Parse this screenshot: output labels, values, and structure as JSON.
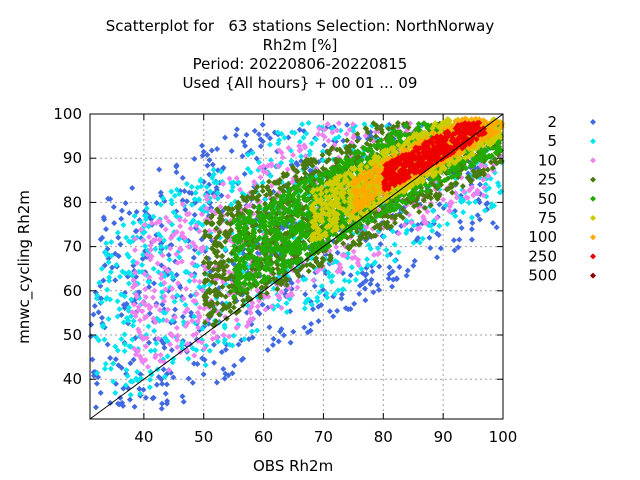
{
  "title_lines": [
    "Scatterplot for   63 stations Selection: NorthNorway",
    "Rh2m [%]",
    "Period: 20220806-20220815",
    "Used {All hours} + 00 01 ... 09"
  ],
  "chart_data": {
    "type": "scatter",
    "xlabel": "OBS Rh2m",
    "ylabel": "mnwc_cycling Rh2m",
    "xlim": [
      31,
      100
    ],
    "ylim": [
      31,
      100
    ],
    "x_ticks": [
      "40",
      "50",
      "60",
      "70",
      "80",
      "90",
      "100"
    ],
    "y_ticks": [
      "40",
      "50",
      "60",
      "70",
      "80",
      "90",
      "100"
    ],
    "x_tick_values": [
      40,
      50,
      60,
      70,
      80,
      90,
      100
    ],
    "y_tick_values": [
      40,
      50,
      60,
      70,
      80,
      90,
      100
    ],
    "grid": true,
    "diagonal_reference_line": true,
    "legend_placement": "right",
    "legend": [
      {
        "label": "2",
        "color": "#4169e1"
      },
      {
        "label": "5",
        "color": "#00e5ee"
      },
      {
        "label": "10",
        "color": "#ee82ee"
      },
      {
        "label": "25",
        "color": "#4a7a0c"
      },
      {
        "label": "50",
        "color": "#22aa00"
      },
      {
        "label": "75",
        "color": "#cccc00"
      },
      {
        "label": "100",
        "color": "#ffaa00"
      },
      {
        "label": "250",
        "color": "#ee0000"
      },
      {
        "label": "500",
        "color": "#8b0000"
      }
    ],
    "density_bands_description": "point colour encodes count per bin; counts rise toward the diagonal, highest (250) near OBS 80-95 / model 80-95",
    "density_regions": [
      {
        "level": "2",
        "color": "#4169e1",
        "x_range": [
          31,
          100
        ],
        "y_range": [
          33,
          98
        ],
        "offset_spread": 28
      },
      {
        "level": "5",
        "color": "#00e5ee",
        "x_range": [
          32,
          100
        ],
        "y_range": [
          36,
          98
        ],
        "offset_spread": 22
      },
      {
        "level": "10",
        "color": "#ee82ee",
        "x_range": [
          38,
          100
        ],
        "y_range": [
          42,
          98
        ],
        "offset_spread": 18
      },
      {
        "level": "25",
        "color": "#4a7a0c",
        "x_range": [
          50,
          100
        ],
        "y_range": [
          52,
          98
        ],
        "offset_spread": 13
      },
      {
        "level": "50",
        "color": "#22aa00",
        "x_range": [
          55,
          100
        ],
        "y_range": [
          58,
          98
        ],
        "offset_spread": 9
      },
      {
        "level": "75",
        "color": "#cccc00",
        "x_range": [
          68,
          100
        ],
        "y_range": [
          70,
          99
        ],
        "offset_spread": 6
      },
      {
        "level": "100",
        "color": "#ffaa00",
        "x_range": [
          75,
          100
        ],
        "y_range": [
          76,
          99
        ],
        "offset_spread": 4
      },
      {
        "level": "250",
        "color": "#ee0000",
        "x_range": [
          80,
          97
        ],
        "y_range": [
          80,
          98
        ],
        "offset_spread": 3
      }
    ]
  }
}
